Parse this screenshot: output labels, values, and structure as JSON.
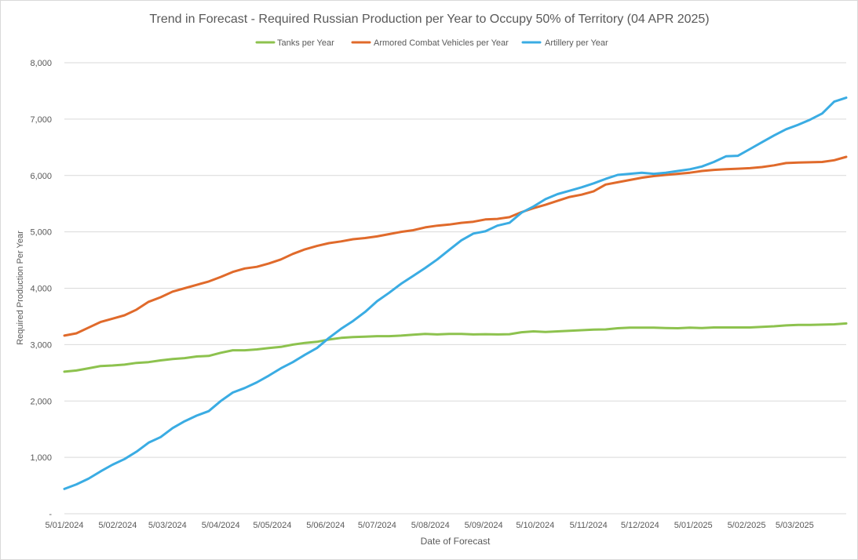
{
  "chart_data": {
    "type": "line",
    "title": "Trend in Forecast - Required Russian Production per Year to Occupy 50% of Territory (04 APR 2025)",
    "xlabel": "Date of Forecast",
    "ylabel": "Required Production Per Year",
    "ylim": [
      0,
      8000
    ],
    "yticks": [
      {
        "value": 0,
        "label": "-"
      },
      {
        "value": 1000,
        "label": "1,000"
      },
      {
        "value": 2000,
        "label": "2,000"
      },
      {
        "value": 3000,
        "label": "3,000"
      },
      {
        "value": 4000,
        "label": "4,000"
      },
      {
        "value": 5000,
        "label": "5,000"
      },
      {
        "value": 6000,
        "label": "6,000"
      },
      {
        "value": 7000,
        "label": "7,000"
      },
      {
        "value": 8000,
        "label": "8,000"
      }
    ],
    "xlim": [
      "2024-01-05",
      "2025-04-04"
    ],
    "xticks": [
      {
        "value": "2024-01-05",
        "label": "5/01/2024"
      },
      {
        "value": "2024-02-05",
        "label": "5/02/2024"
      },
      {
        "value": "2024-03-05",
        "label": "5/03/2024"
      },
      {
        "value": "2024-04-05",
        "label": "5/04/2024"
      },
      {
        "value": "2024-05-05",
        "label": "5/05/2024"
      },
      {
        "value": "2024-06-05",
        "label": "5/06/2024"
      },
      {
        "value": "2024-07-05",
        "label": "5/07/2024"
      },
      {
        "value": "2024-08-05",
        "label": "5/08/2024"
      },
      {
        "value": "2024-09-05",
        "label": "5/09/2024"
      },
      {
        "value": "2024-10-05",
        "label": "5/10/2024"
      },
      {
        "value": "2024-11-05",
        "label": "5/11/2024"
      },
      {
        "value": "2024-12-05",
        "label": "5/12/2024"
      },
      {
        "value": "2025-01-05",
        "label": "5/01/2025"
      },
      {
        "value": "2025-02-05",
        "label": "5/02/2025"
      },
      {
        "value": "2025-03-05",
        "label": "5/03/2025"
      }
    ],
    "grid": "horizontal",
    "legend_position": "top",
    "x": [
      "2024-01-05",
      "2024-01-12",
      "2024-01-19",
      "2024-01-26",
      "2024-02-02",
      "2024-02-09",
      "2024-02-16",
      "2024-02-23",
      "2024-03-01",
      "2024-03-08",
      "2024-03-15",
      "2024-03-22",
      "2024-03-29",
      "2024-04-05",
      "2024-04-12",
      "2024-04-19",
      "2024-04-26",
      "2024-05-03",
      "2024-05-10",
      "2024-05-17",
      "2024-05-24",
      "2024-05-31",
      "2024-06-07",
      "2024-06-14",
      "2024-06-21",
      "2024-06-28",
      "2024-07-05",
      "2024-07-12",
      "2024-07-19",
      "2024-07-26",
      "2024-08-02",
      "2024-08-09",
      "2024-08-16",
      "2024-08-23",
      "2024-08-30",
      "2024-09-06",
      "2024-09-13",
      "2024-09-20",
      "2024-09-27",
      "2024-10-04",
      "2024-10-11",
      "2024-10-18",
      "2024-10-25",
      "2024-11-01",
      "2024-11-08",
      "2024-11-15",
      "2024-11-22",
      "2024-11-29",
      "2024-12-06",
      "2024-12-13",
      "2024-12-20",
      "2024-12-27",
      "2025-01-03",
      "2025-01-10",
      "2025-01-17",
      "2025-01-24",
      "2025-01-31",
      "2025-02-07",
      "2025-02-14",
      "2025-02-21",
      "2025-02-28",
      "2025-03-07",
      "2025-03-14",
      "2025-03-21",
      "2025-03-28",
      "2025-04-04"
    ],
    "series": [
      {
        "name": "Tanks per Year",
        "color": "#8dc24e",
        "values": [
          2520,
          2540,
          2580,
          2620,
          2630,
          2645,
          2675,
          2690,
          2720,
          2745,
          2760,
          2790,
          2800,
          2855,
          2900,
          2900,
          2915,
          2940,
          2960,
          3000,
          3030,
          3050,
          3090,
          3120,
          3135,
          3140,
          3150,
          3150,
          3160,
          3175,
          3190,
          3180,
          3190,
          3190,
          3180,
          3185,
          3180,
          3185,
          3220,
          3235,
          3225,
          3235,
          3245,
          3255,
          3265,
          3270,
          3290,
          3300,
          3300,
          3300,
          3295,
          3290,
          3300,
          3295,
          3305,
          3305,
          3305,
          3305,
          3315,
          3325,
          3340,
          3350,
          3350,
          3355,
          3360,
          3375
        ]
      },
      {
        "name": "Armored Combat Vehicles per Year",
        "color": "#e06a2b",
        "values": [
          3160,
          3200,
          3300,
          3400,
          3460,
          3520,
          3620,
          3760,
          3840,
          3940,
          4000,
          4060,
          4120,
          4200,
          4290,
          4350,
          4380,
          4440,
          4510,
          4610,
          4690,
          4750,
          4800,
          4830,
          4870,
          4890,
          4920,
          4960,
          5000,
          5030,
          5080,
          5110,
          5130,
          5160,
          5180,
          5220,
          5230,
          5260,
          5350,
          5420,
          5480,
          5550,
          5620,
          5660,
          5720,
          5840,
          5880,
          5920,
          5960,
          5990,
          6010,
          6030,
          6050,
          6080,
          6100,
          6110,
          6120,
          6130,
          6150,
          6180,
          6220,
          6230,
          6235,
          6240,
          6270,
          6330
        ]
      },
      {
        "name": "Artillery per Year",
        "color": "#3aace3",
        "values": [
          440,
          520,
          620,
          750,
          870,
          970,
          1100,
          1260,
          1360,
          1520,
          1640,
          1740,
          1820,
          2000,
          2150,
          2230,
          2330,
          2450,
          2580,
          2690,
          2820,
          2940,
          3120,
          3280,
          3420,
          3580,
          3770,
          3920,
          4080,
          4220,
          4360,
          4510,
          4680,
          4850,
          4970,
          5010,
          5110,
          5160,
          5340,
          5450,
          5580,
          5670,
          5730,
          5790,
          5860,
          5940,
          6010,
          6030,
          6050,
          6030,
          6050,
          6080,
          6110,
          6160,
          6240,
          6340,
          6350,
          6470,
          6590,
          6710,
          6820,
          6900,
          6990,
          7100,
          7310,
          7380
        ]
      }
    ]
  }
}
